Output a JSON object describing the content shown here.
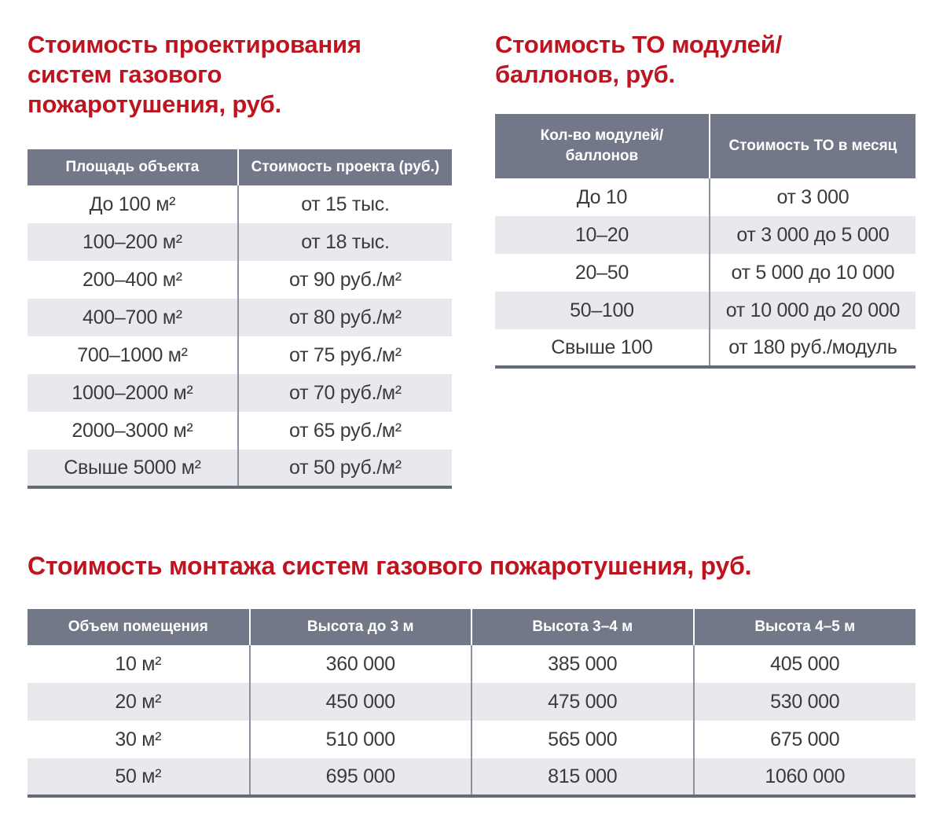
{
  "colors": {
    "title_red": "#be1420",
    "header_gray": "#737888",
    "row_alt_gray": "#e8e8ed",
    "table_bottom_border": "#646b78",
    "body_text": "#3a3a40"
  },
  "design": {
    "title_lines": [
      "Стоимость проектирования",
      "систем газового",
      "пожаротушения, руб."
    ],
    "columns": [
      "Площадь объекта",
      "Стоимость проекта (руб.)"
    ],
    "rows": [
      [
        "До 100 м²",
        "от 15 тыс."
      ],
      [
        "100–200 м²",
        "от 18 тыс."
      ],
      [
        "200–400 м²",
        "от 90 руб./м²"
      ],
      [
        "400–700 м²",
        "от 80 руб./м²"
      ],
      [
        "700–1000 м²",
        "от 75 руб./м²"
      ],
      [
        "1000–2000 м²",
        "от 70 руб./м²"
      ],
      [
        "2000–3000 м²",
        "от 65 руб./м²"
      ],
      [
        "Свыше 5000 м²",
        "от 50 руб./м²"
      ]
    ]
  },
  "maintenance": {
    "title_lines": [
      "Стоимость ТО модулей/",
      "баллонов, руб."
    ],
    "columns": [
      "Кол-во модулей/\nбаллонов",
      "Стоимость ТО в месяц"
    ],
    "rows": [
      [
        "До 10",
        "от 3 000"
      ],
      [
        "10–20",
        "от 3 000 до 5 000"
      ],
      [
        "20–50",
        "от 5 000 до 10 000"
      ],
      [
        "50–100",
        "от 10 000 до 20 000"
      ],
      [
        "Свыше 100",
        "от 180 руб./модуль"
      ]
    ]
  },
  "installation": {
    "title": "Стоимость монтажа систем газового пожаротушения, руб.",
    "columns": [
      "Объем помещения",
      "Высота до 3 м",
      "Высота 3–4 м",
      "Высота 4–5 м"
    ],
    "rows": [
      [
        "10 м²",
        "360 000",
        "385 000",
        "405 000"
      ],
      [
        "20 м²",
        "450 000",
        "475 000",
        "530 000"
      ],
      [
        "30 м²",
        "510 000",
        "565 000",
        "675 000"
      ],
      [
        "50 м²",
        "695 000",
        "815 000",
        "1060 000"
      ]
    ]
  }
}
